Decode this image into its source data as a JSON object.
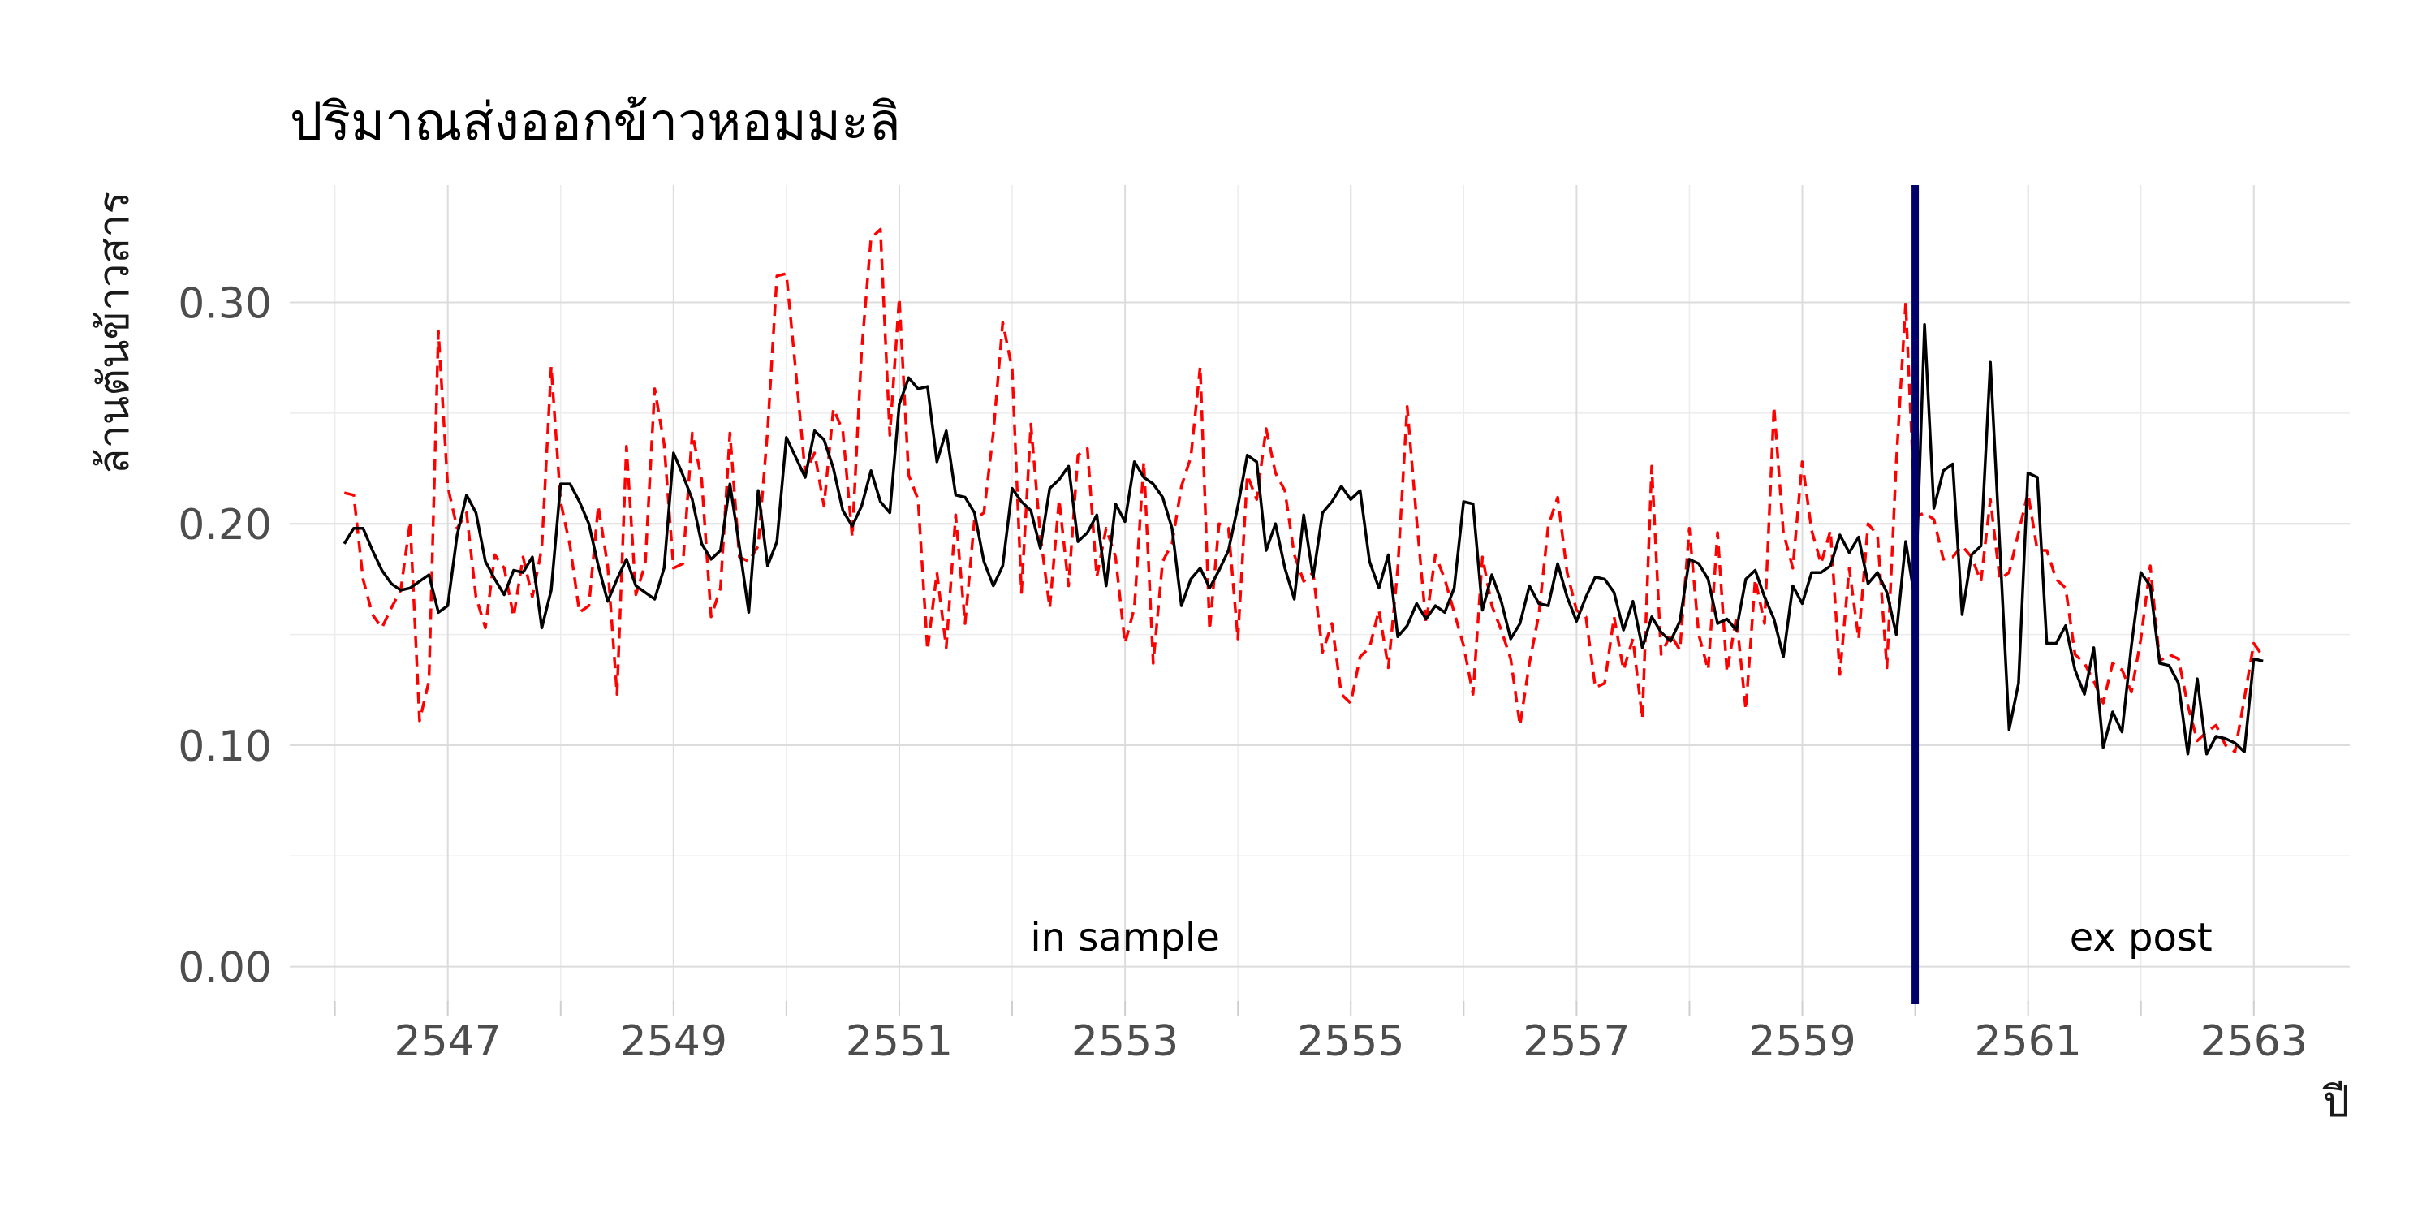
{
  "chart_data": {
    "type": "line",
    "title": "ปริมาณส่งออกข้าวหอมมะลิ",
    "xlabel": "ปี",
    "ylabel": "ล้านตันข้าวสาร",
    "xlim": [
      2545.6,
      2563.85
    ],
    "ylim": [
      -0.017,
      0.353
    ],
    "x_ticks": [
      2547,
      2549,
      2551,
      2553,
      2555,
      2557,
      2559,
      2561,
      2563
    ],
    "x_tick_labels": [
      "2547",
      "2549",
      "2551",
      "2553",
      "2555",
      "2557",
      "2559",
      "2561",
      "2563"
    ],
    "y_ticks": [
      0.0,
      0.1,
      0.2,
      0.3
    ],
    "y_tick_labels": [
      "0.00",
      "0.10",
      "0.20",
      "0.30"
    ],
    "grid": true,
    "x_start": 2546.083,
    "x_step": 0.08333,
    "vline": {
      "x": 2560.0,
      "color": "#00006b"
    },
    "annotations": [
      {
        "text": "in sample",
        "x": 2553.0,
        "y": 0.008
      },
      {
        "text": "ex post",
        "x": 2562.0,
        "y": 0.008
      }
    ],
    "series": [
      {
        "style": "solid",
        "color": "#000000",
        "values": [
          0.191,
          0.198,
          0.198,
          0.188,
          0.179,
          0.173,
          0.17,
          0.171,
          0.174,
          0.177,
          0.16,
          0.163,
          0.195,
          0.213,
          0.205,
          0.183,
          0.175,
          0.168,
          0.179,
          0.178,
          0.185,
          0.153,
          0.17,
          0.218,
          0.218,
          0.21,
          0.2,
          0.181,
          0.165,
          0.175,
          0.184,
          0.172,
          0.169,
          0.166,
          0.18,
          0.232,
          0.222,
          0.211,
          0.191,
          0.184,
          0.188,
          0.218,
          0.19,
          0.16,
          0.215,
          0.181,
          0.192,
          0.239,
          0.23,
          0.221,
          0.242,
          0.238,
          0.225,
          0.206,
          0.199,
          0.208,
          0.224,
          0.21,
          0.205,
          0.254,
          0.266,
          0.261,
          0.262,
          0.228,
          0.242,
          0.213,
          0.212,
          0.205,
          0.183,
          0.172,
          0.181,
          0.216,
          0.21,
          0.206,
          0.189,
          0.216,
          0.22,
          0.226,
          0.192,
          0.196,
          0.204,
          0.172,
          0.209,
          0.201,
          0.228,
          0.221,
          0.218,
          0.212,
          0.198,
          0.163,
          0.175,
          0.18,
          0.171,
          0.179,
          0.188,
          0.208,
          0.231,
          0.228,
          0.188,
          0.2,
          0.18,
          0.166,
          0.204,
          0.176,
          0.205,
          0.21,
          0.217,
          0.211,
          0.215,
          0.183,
          0.171,
          0.186,
          0.149,
          0.154,
          0.164,
          0.157,
          0.163,
          0.16,
          0.171,
          0.21,
          0.209,
          0.161,
          0.177,
          0.165,
          0.148,
          0.155,
          0.172,
          0.164,
          0.163,
          0.182,
          0.167,
          0.156,
          0.167,
          0.176,
          0.175,
          0.169,
          0.152,
          0.165,
          0.144,
          0.158,
          0.151,
          0.147,
          0.156,
          0.184,
          0.182,
          0.175,
          0.155,
          0.157,
          0.152,
          0.175,
          0.179,
          0.167,
          0.157,
          0.14,
          0.172,
          0.164,
          0.178,
          0.178,
          0.181,
          0.195,
          0.187,
          0.194,
          0.173,
          0.178,
          0.169,
          0.15,
          0.192,
          0.165,
          0.29,
          0.207,
          0.224,
          0.227,
          0.159,
          0.186,
          0.19,
          0.273,
          0.19,
          0.107,
          0.128,
          0.223,
          0.221,
          0.146,
          0.146,
          0.154,
          0.134,
          0.123,
          0.144,
          0.099,
          0.115,
          0.106,
          0.145,
          0.178,
          0.172,
          0.137,
          0.136,
          0.128,
          0.096,
          0.13,
          0.096,
          0.104,
          0.103,
          0.101,
          0.097,
          0.139,
          0.138
        ]
      },
      {
        "style": "dashed",
        "color": "#ff0000",
        "values": [
          0.214,
          0.213,
          0.175,
          0.159,
          0.153,
          0.162,
          0.17,
          0.201,
          0.111,
          0.129,
          0.287,
          0.217,
          0.198,
          0.205,
          0.167,
          0.153,
          0.186,
          0.18,
          0.158,
          0.185,
          0.167,
          0.189,
          0.271,
          0.21,
          0.19,
          0.16,
          0.163,
          0.208,
          0.181,
          0.123,
          0.235,
          0.168,
          0.182,
          0.261,
          0.236,
          0.18,
          0.182,
          0.241,
          0.22,
          0.158,
          0.171,
          0.241,
          0.185,
          0.183,
          0.19,
          0.242,
          0.312,
          0.313,
          0.269,
          0.223,
          0.232,
          0.208,
          0.252,
          0.242,
          0.194,
          0.278,
          0.329,
          0.333,
          0.24,
          0.302,
          0.222,
          0.211,
          0.143,
          0.178,
          0.144,
          0.204,
          0.155,
          0.202,
          0.205,
          0.241,
          0.291,
          0.27,
          0.169,
          0.245,
          0.195,
          0.162,
          0.211,
          0.172,
          0.231,
          0.234,
          0.176,
          0.198,
          0.185,
          0.146,
          0.162,
          0.228,
          0.137,
          0.183,
          0.191,
          0.217,
          0.23,
          0.271,
          0.152,
          0.2,
          0.198,
          0.148,
          0.222,
          0.211,
          0.243,
          0.223,
          0.215,
          0.186,
          0.174,
          0.178,
          0.142,
          0.155,
          0.123,
          0.119,
          0.14,
          0.144,
          0.161,
          0.135,
          0.18,
          0.253,
          0.202,
          0.155,
          0.186,
          0.175,
          0.16,
          0.145,
          0.123,
          0.185,
          0.163,
          0.152,
          0.139,
          0.109,
          0.137,
          0.159,
          0.199,
          0.212,
          0.178,
          0.161,
          0.158,
          0.126,
          0.128,
          0.158,
          0.134,
          0.148,
          0.112,
          0.226,
          0.141,
          0.15,
          0.143,
          0.198,
          0.15,
          0.134,
          0.196,
          0.133,
          0.158,
          0.116,
          0.175,
          0.155,
          0.253,
          0.196,
          0.18,
          0.228,
          0.197,
          0.182,
          0.197,
          0.132,
          0.18,
          0.148,
          0.2,
          0.195,
          0.135,
          0.228,
          0.3,
          0.203,
          0.205,
          0.202,
          0.184,
          0.185,
          0.19,
          0.185,
          0.174,
          0.211,
          0.175,
          0.178,
          0.196,
          0.214,
          0.188,
          0.188,
          0.175,
          0.171,
          0.141,
          0.137,
          0.129,
          0.119,
          0.137,
          0.134,
          0.124,
          0.148,
          0.181,
          0.138,
          0.141,
          0.139,
          0.118,
          0.102,
          0.106,
          0.109,
          0.1,
          0.097,
          0.121,
          0.146,
          0.14
        ]
      }
    ]
  }
}
